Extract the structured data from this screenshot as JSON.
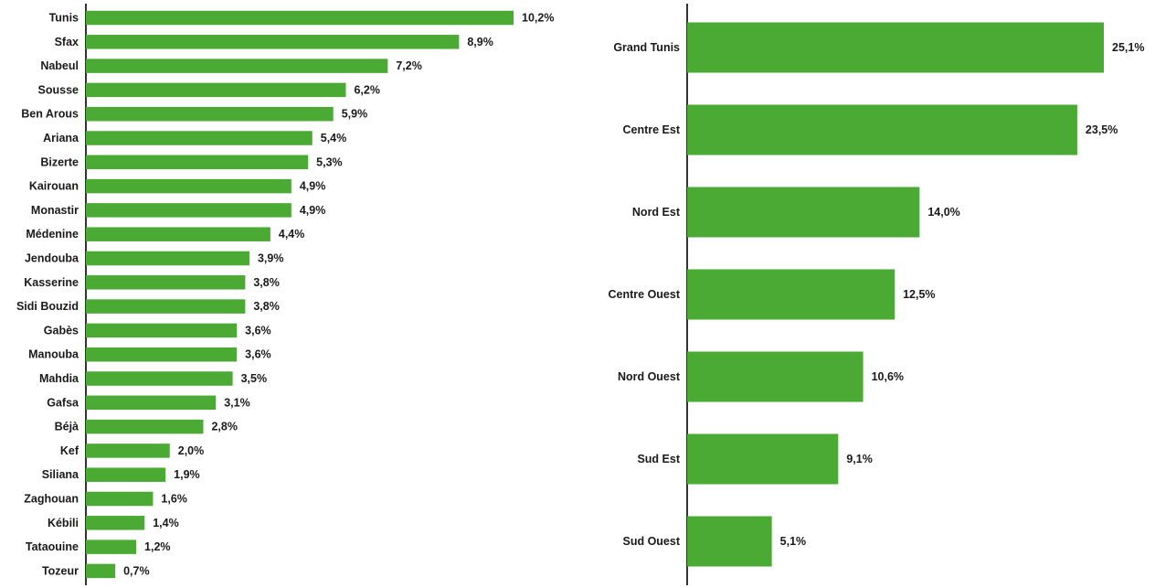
{
  "colors": {
    "bar": "#4aaa33",
    "text": "#1a1a1a",
    "axis": "#333333",
    "background": "#ffffff"
  },
  "chart_data": [
    {
      "type": "bar",
      "orientation": "horizontal",
      "title": "",
      "xlabel": "",
      "ylabel": "",
      "xlim": [
        0,
        10.2
      ],
      "grid": false,
      "legend": "none",
      "categories": [
        "Tunis",
        "Sfax",
        "Nabeul",
        "Sousse",
        "Ben Arous",
        "Ariana",
        "Bizerte",
        "Kairouan",
        "Monastir",
        "Médenine",
        "Jendouba",
        "Kasserine",
        "Sidi Bouzid",
        "Gabès",
        "Manouba",
        "Mahdia",
        "Gafsa",
        "Béjà",
        "Kef",
        "Siliana",
        "Zaghouan",
        "Kébili",
        "Tataouine",
        "Tozeur"
      ],
      "values": [
        10.2,
        8.9,
        7.2,
        6.2,
        5.9,
        5.4,
        5.3,
        4.9,
        4.9,
        4.4,
        3.9,
        3.8,
        3.8,
        3.6,
        3.6,
        3.5,
        3.1,
        2.8,
        2.0,
        1.9,
        1.6,
        1.4,
        1.2,
        0.7
      ],
      "value_labels": [
        "10,2%",
        "8,9%",
        "7,2%",
        "6,2%",
        "5,9%",
        "5,4%",
        "5,3%",
        "4,9%",
        "4,9%",
        "4,4%",
        "3,9%",
        "3,8%",
        "3,8%",
        "3,6%",
        "3,6%",
        "3,5%",
        "3,1%",
        "2,8%",
        "2,0%",
        "1,9%",
        "1,6%",
        "1,4%",
        "1,2%",
        "0,7%"
      ]
    },
    {
      "type": "bar",
      "orientation": "horizontal",
      "title": "",
      "xlabel": "",
      "ylabel": "",
      "xlim": [
        0,
        25.1
      ],
      "grid": false,
      "legend": "none",
      "categories": [
        "Grand Tunis",
        "Centre Est",
        "Nord Est",
        "Centre Ouest",
        "Nord Ouest",
        "Sud Est",
        "Sud Ouest"
      ],
      "values": [
        25.1,
        23.5,
        14.0,
        12.5,
        10.6,
        9.1,
        5.1
      ],
      "value_labels": [
        "25,1%",
        "23,5%",
        "14,0%",
        "12,5%",
        "10,6%",
        "9,1%",
        "5,1%"
      ]
    }
  ]
}
